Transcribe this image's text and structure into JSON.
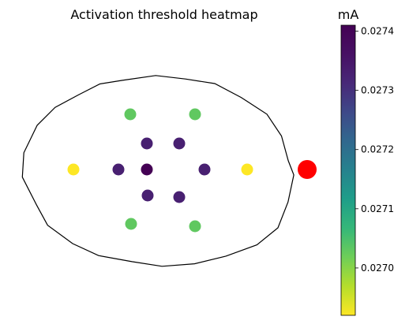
{
  "chart_data": {
    "type": "scatter",
    "title": "Activation threshold heatmap",
    "colorbar": {
      "label": "mA",
      "colormap": "viridis",
      "range": [
        0.02692,
        0.02741
      ],
      "ticks": [
        0.027,
        0.0271,
        0.0272,
        0.0273,
        0.0274
      ],
      "tick_labels": [
        "0.0270",
        "0.0271",
        "0.0272",
        "0.0273",
        "0.0274"
      ]
    },
    "axes": {
      "visible": false,
      "xlim": [
        -130,
        130
      ],
      "ylim": [
        -110,
        110
      ]
    },
    "points": [
      {
        "x": -20,
        "y": 0,
        "value": 0.02741
      },
      {
        "x": -20,
        "y": 33,
        "value": 0.02733
      },
      {
        "x": 21,
        "y": 33,
        "value": 0.02733
      },
      {
        "x": -56,
        "y": 0,
        "value": 0.02733
      },
      {
        "x": 53,
        "y": 0,
        "value": 0.02733
      },
      {
        "x": -19,
        "y": -33,
        "value": 0.02733
      },
      {
        "x": 21,
        "y": -35,
        "value": 0.02733
      },
      {
        "x": -41,
        "y": 70,
        "value": 0.02703
      },
      {
        "x": 41,
        "y": 70,
        "value": 0.02703
      },
      {
        "x": -40,
        "y": -69,
        "value": 0.02703
      },
      {
        "x": 41,
        "y": -72,
        "value": 0.02703
      },
      {
        "x": -113,
        "y": 0,
        "value": 0.02692
      },
      {
        "x": 107,
        "y": 0,
        "value": 0.02692
      }
    ],
    "marker": {
      "x": 183,
      "y": 0,
      "color": "#ff0000",
      "label": ""
    },
    "outline": {
      "type": "closed-contour",
      "color": "#000000",
      "points": [
        [
          -106,
          95
        ],
        [
          -80,
          108
        ],
        [
          -50,
          114
        ],
        [
          -10,
          118
        ],
        [
          30,
          116
        ],
        [
          65,
          108
        ],
        [
          100,
          92
        ],
        [
          132,
          70
        ],
        [
          150,
          42
        ],
        [
          160,
          12
        ],
        [
          165,
          -8
        ],
        [
          160,
          -40
        ],
        [
          145,
          -75
        ],
        [
          120,
          -95
        ],
        [
          80,
          -110
        ],
        [
          40,
          -120
        ],
        [
          0,
          -122
        ],
        [
          -40,
          -118
        ],
        [
          -80,
          -108
        ],
        [
          -115,
          -95
        ],
        [
          -145,
          -70
        ],
        [
          -160,
          -45
        ],
        [
          -178,
          -10
        ],
        [
          -175,
          22
        ],
        [
          -160,
          55
        ],
        [
          -135,
          80
        ]
      ]
    }
  }
}
